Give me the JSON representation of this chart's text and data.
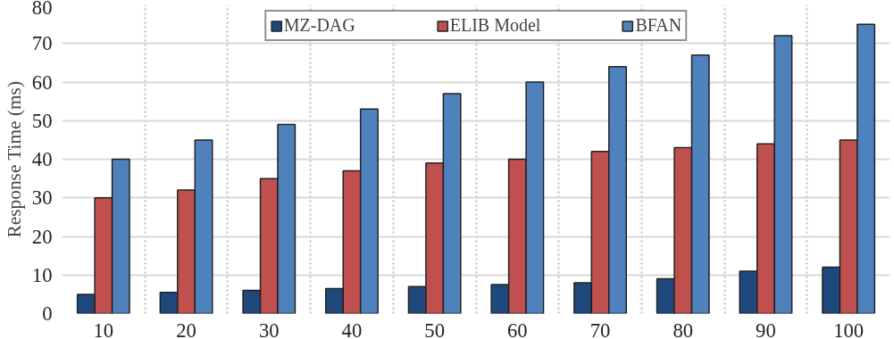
{
  "chart_data": {
    "type": "bar",
    "ylabel": "Response Time (ms)",
    "categories": [
      "10",
      "20",
      "30",
      "40",
      "50",
      "60",
      "70",
      "80",
      "90",
      "100"
    ],
    "series": [
      {
        "name": "MZ-DAG",
        "color": "#1f497d",
        "values": [
          5,
          5.5,
          6,
          6.5,
          7,
          7.5,
          8,
          9,
          11,
          12
        ]
      },
      {
        "name": "ELIB Model",
        "color": "#c0504d",
        "values": [
          30,
          32,
          35,
          37,
          39,
          40,
          42,
          43,
          44,
          45
        ]
      },
      {
        "name": "BFAN",
        "color": "#4f81bd",
        "values": [
          40,
          45,
          49,
          53,
          57,
          60,
          64,
          67,
          72,
          75
        ]
      }
    ],
    "ylim": [
      0,
      80
    ],
    "yticks": [
      0,
      10,
      20,
      30,
      40,
      50,
      60,
      70,
      80
    ],
    "grid": true,
    "legend": "top"
  }
}
